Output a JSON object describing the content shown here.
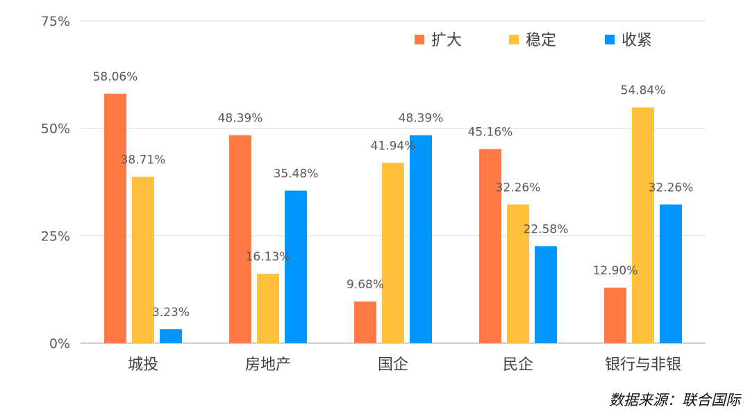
{
  "chart_data": {
    "type": "bar",
    "categories": [
      "城投",
      "房地产",
      "国企",
      "民企",
      "银行与非银"
    ],
    "series": [
      {
        "name": "扩大",
        "color": "#FF7A45",
        "values": [
          58.06,
          48.39,
          9.68,
          45.16,
          12.9
        ],
        "labels": [
          "58.06%",
          "48.39%",
          "9.68%",
          "45.16%",
          "12.90%"
        ]
      },
      {
        "name": "稳定",
        "color": "#FFC13B",
        "values": [
          38.71,
          16.13,
          41.94,
          32.26,
          54.84
        ],
        "labels": [
          "38.71%",
          "16.13%",
          "41.94%",
          "32.26%",
          "54.84%"
        ]
      },
      {
        "name": "收紧",
        "color": "#0096FF",
        "values": [
          3.23,
          35.48,
          48.39,
          22.58,
          32.26
        ],
        "labels": [
          "3.23%",
          "35.48%",
          "48.39%",
          "22.58%",
          "32.26%"
        ]
      }
    ],
    "yticks": [
      0,
      25,
      50,
      75
    ],
    "ytick_labels": [
      "0%",
      "25%",
      "50%",
      "75%"
    ],
    "ylim": [
      0,
      75
    ],
    "grid": true,
    "legend_position": "top-right"
  },
  "source_text": "数据来源：联合国际"
}
